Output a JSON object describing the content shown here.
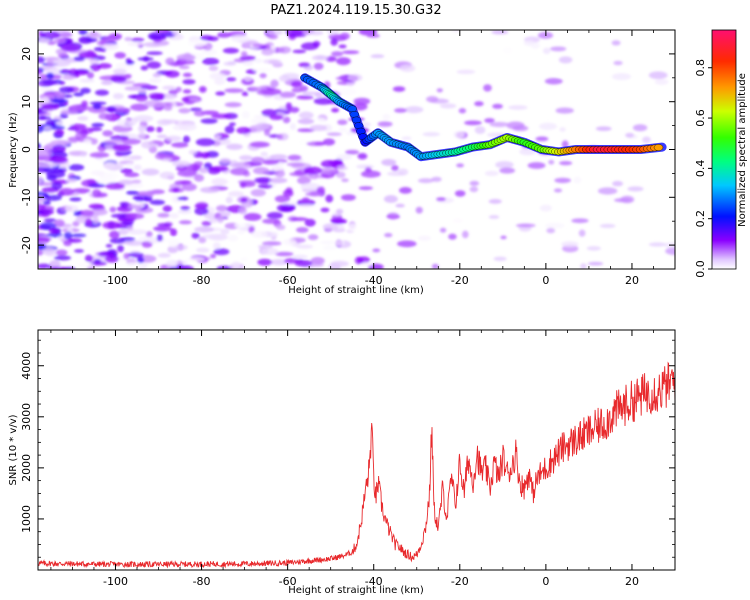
{
  "title": "PAZ1.2024.119.15.30.G32",
  "chart_data": [
    {
      "type": "heatmap",
      "xlabel": "Height of straight line (km)",
      "ylabel": "Frequency (Hz)",
      "xlim": [
        -118,
        30
      ],
      "ylim": [
        -25,
        25
      ],
      "xticks": [
        -100,
        -80,
        -60,
        -40,
        -20,
        0,
        20
      ],
      "yticks": [
        -20,
        -10,
        0,
        10,
        20
      ],
      "colorbar": {
        "label": "Normalized spectral amplitude",
        "ticks": [
          0.0,
          0.2,
          0.4,
          0.6,
          0.8
        ],
        "tick_labels": [
          "0.0",
          "0.2",
          "0.4",
          "0.6",
          "0.8"
        ],
        "range": [
          0,
          0.95
        ],
        "colormap": "gist_rainbow"
      },
      "ridge": [
        {
          "x": -56,
          "y": 15,
          "amp": 0.25
        },
        {
          "x": -52,
          "y": 13,
          "amp": 0.28
        },
        {
          "x": -50,
          "y": 11.5,
          "amp": 0.4
        },
        {
          "x": -48,
          "y": 10,
          "amp": 0.3
        },
        {
          "x": -45,
          "y": 8.5,
          "amp": 0.25
        },
        {
          "x": -42,
          "y": 1.5,
          "amp": 0.2
        },
        {
          "x": -39,
          "y": 3.5,
          "amp": 0.3
        },
        {
          "x": -36,
          "y": 1.5,
          "amp": 0.3
        },
        {
          "x": -32,
          "y": 0.5,
          "amp": 0.28
        },
        {
          "x": -29,
          "y": -1.5,
          "amp": 0.3
        },
        {
          "x": -25,
          "y": -1,
          "amp": 0.35
        },
        {
          "x": -21,
          "y": -0.5,
          "amp": 0.4
        },
        {
          "x": -17,
          "y": 0.5,
          "amp": 0.45
        },
        {
          "x": -13,
          "y": 1,
          "amp": 0.55
        },
        {
          "x": -9,
          "y": 2.5,
          "amp": 0.6
        },
        {
          "x": -5,
          "y": 1.5,
          "amp": 0.5
        },
        {
          "x": -1,
          "y": 0,
          "amp": 0.55
        },
        {
          "x": 3,
          "y": -0.5,
          "amp": 0.65
        },
        {
          "x": 7,
          "y": 0,
          "amp": 0.75
        },
        {
          "x": 12,
          "y": 0,
          "amp": 0.9
        },
        {
          "x": 17,
          "y": 0,
          "amp": 0.85
        },
        {
          "x": 22,
          "y": 0,
          "amp": 0.8
        },
        {
          "x": 27,
          "y": 0.5,
          "amp": 0.7
        }
      ]
    },
    {
      "type": "line",
      "xlabel": "Height of straight line (km)",
      "ylabel": "SNR (10 * v/v)",
      "xlim": [
        -118,
        30
      ],
      "ylim": [
        0,
        4700
      ],
      "xticks": [
        -100,
        -80,
        -60,
        -40,
        -20,
        0,
        20
      ],
      "yticks": [
        1000,
        2000,
        3000,
        4000
      ],
      "line_color": "#e8292c",
      "series": [
        {
          "x": [
            -118,
            -110,
            -100,
            -90,
            -80,
            -70,
            -60,
            -55,
            -50,
            -47,
            -45,
            -44,
            -43,
            -42,
            -41,
            -40.5,
            -40,
            -39.5,
            -39,
            -38,
            -37,
            -36,
            -35,
            -34,
            -33,
            -32,
            -31,
            -30,
            -29,
            -28,
            -27,
            -26.5,
            -26,
            -25,
            -24,
            -23,
            -22,
            -21,
            -20,
            -19,
            -18,
            -17,
            -16,
            -15,
            -14,
            -13,
            -12,
            -11,
            -10,
            -9,
            -8,
            -7,
            -6,
            -5,
            -4,
            -3,
            -2,
            -1,
            0,
            2,
            4,
            6,
            8,
            10,
            12,
            14,
            16,
            18,
            20,
            22,
            24,
            26,
            28,
            30
          ],
          "values": [
            130,
            120,
            110,
            110,
            115,
            120,
            140,
            180,
            220,
            280,
            350,
            500,
            900,
            1500,
            2000,
            2800,
            1800,
            1400,
            1700,
            1200,
            900,
            700,
            500,
            450,
            350,
            300,
            250,
            300,
            500,
            800,
            1500,
            2900,
            1200,
            800,
            1600,
            1000,
            1800,
            1300,
            2100,
            1500,
            2200,
            1700,
            2300,
            1900,
            2000,
            1600,
            2100,
            1800,
            2200,
            1900,
            2000,
            2300,
            1700,
            1600,
            1900,
            1500,
            1800,
            1900,
            2000,
            2200,
            2400,
            2500,
            2600,
            2700,
            2800,
            2900,
            3100,
            3200,
            3300,
            3400,
            3500,
            3500,
            3600,
            3700
          ]
        }
      ]
    }
  ]
}
